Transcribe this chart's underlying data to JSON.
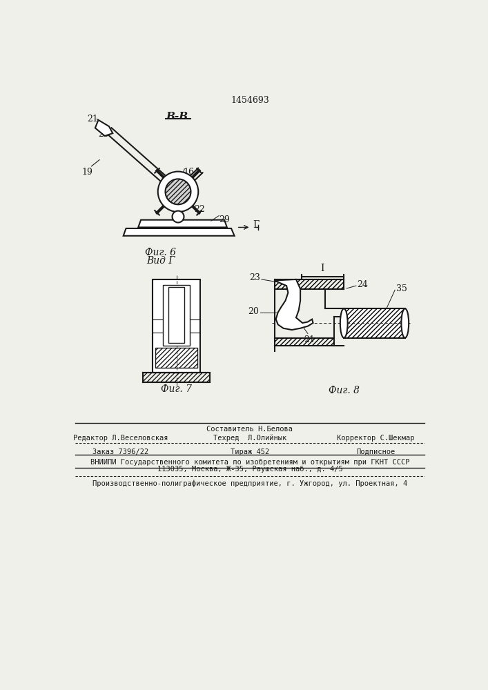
{
  "patent_number": "1454693",
  "bg_color": "#f0f0eb",
  "line_color": "#1a1a1a",
  "fig6_label": "Фиг. 6",
  "vid_label": "Вид Г",
  "fig7_label": "Фиг. 7",
  "fig8_label": "Фиг. 8",
  "section_label": "В-В",
  "footer_line1_center": "Составитель Н.Белова",
  "footer_line1_left": "Редактор Л.Веселовская",
  "footer_line1_center2": "Техред  Л.Олийнык",
  "footer_line1_right": "Корректор С.Шекмар",
  "footer_line2_left": "Заказ 7396/22",
  "footer_line2_center": "Тираж 452",
  "footer_line2_right": "Подписное",
  "footer_line3": "ВНИИПИ Государственного комитета по изобретениям и открытиям при ГКНТ СССР",
  "footer_line4": "113035, Москва, Ж-35, Раушская наб., д. 4/5",
  "footer_line5": "Производственно-полиграфическое предприятие, г. Ужгород, ул. Проектная, 4"
}
